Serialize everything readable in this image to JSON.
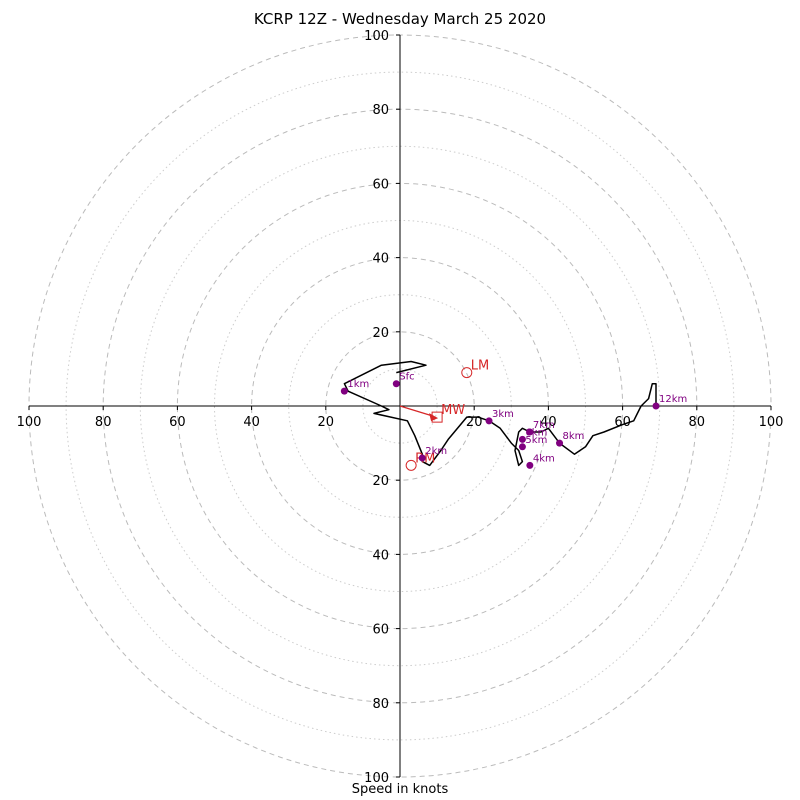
{
  "title": "KCRP 12Z - Wednesday March 25 2020",
  "chart_data": {
    "type": "hodograph",
    "title": "KCRP 12Z - Wednesday March 25 2020",
    "xlabel": "Speed in knots",
    "ylabel": "",
    "xlim": [
      -100,
      100
    ],
    "ylim": [
      -100,
      100
    ],
    "ring_speeds_dashed": [
      20,
      40,
      60,
      80,
      100
    ],
    "ring_speeds_dotted": [
      10,
      30,
      50,
      70,
      90
    ],
    "tick_labels": [
      "100",
      "80",
      "60",
      "40",
      "20",
      "20",
      "40",
      "60",
      "80",
      "100"
    ],
    "tick_values": [
      -100,
      -80,
      -60,
      -40,
      -20,
      20,
      40,
      60,
      80,
      100
    ],
    "y_tick_labels": [
      "100",
      "80",
      "60",
      "40",
      "20",
      "20",
      "40",
      "60",
      "80",
      "100"
    ],
    "y_tick_values": [
      100,
      80,
      60,
      40,
      20,
      -20,
      -40,
      -60,
      -80,
      -100
    ],
    "grid": true,
    "wind_trace": {
      "u": [
        -1,
        7,
        3,
        -5,
        -15,
        -14,
        -5,
        -3,
        -7,
        2,
        4,
        6,
        6,
        8,
        11,
        13,
        18,
        21,
        24,
        27,
        30,
        32,
        33,
        32,
        31,
        32,
        33,
        35,
        38,
        40,
        43,
        47,
        50,
        52,
        55,
        60,
        63,
        65,
        67,
        68,
        69,
        69
      ],
      "v": [
        9,
        11,
        12,
        11,
        6,
        4,
        0,
        -1,
        -2,
        -4,
        -8,
        -13,
        -15,
        -16,
        -12,
        -9,
        -3,
        -3,
        -4,
        -6,
        -10,
        -12,
        -15,
        -16,
        -12,
        -7,
        -6,
        -7,
        -7,
        -6,
        -10,
        -13,
        -11,
        -8,
        -7,
        -5,
        -4,
        0,
        2,
        6,
        6,
        0
      ]
    },
    "height_markers": [
      {
        "label": "Sfc",
        "u": -1,
        "v": 6
      },
      {
        "label": "1km",
        "u": -15,
        "v": 4
      },
      {
        "label": "2km",
        "u": 6,
        "v": -14
      },
      {
        "label": "3km",
        "u": 24,
        "v": -4
      },
      {
        "label": "4km",
        "u": 35,
        "v": -16
      },
      {
        "label": "5km",
        "u": 33,
        "v": -11
      },
      {
        "label": "6km",
        "u": 33,
        "v": -9
      },
      {
        "label": "7km",
        "u": 35,
        "v": -7
      },
      {
        "label": "8km",
        "u": 43,
        "v": -10
      },
      {
        "label": "12km",
        "u": 69,
        "v": 0
      }
    ],
    "storm_motion": [
      {
        "label": "LM",
        "u": 18,
        "v": 9,
        "marker": "circle"
      },
      {
        "label": "RM",
        "u": 3,
        "v": -16,
        "marker": "circle"
      },
      {
        "label": "MW",
        "u": 10,
        "v": -3,
        "marker": "square"
      }
    ],
    "mean_wind_vector": {
      "u": 10,
      "v": -3
    },
    "colors": {
      "trace": "#000000",
      "markers": "#800080",
      "storm": "#d62728",
      "grid": "#bbbbbb"
    }
  }
}
